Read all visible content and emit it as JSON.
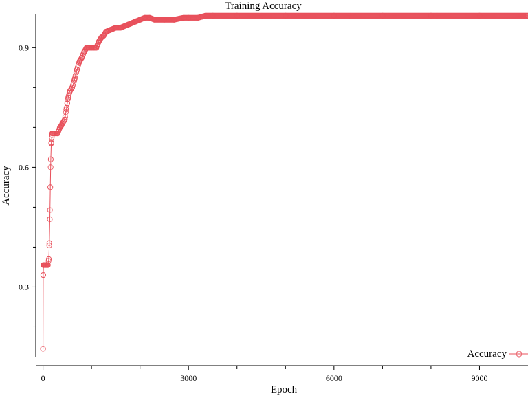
{
  "chart_data": {
    "type": "line",
    "title": "Training Accuracy",
    "xlabel": "Epoch",
    "ylabel": "Accuracy",
    "xlim": [
      -150,
      10000
    ],
    "ylim": [
      0.125,
      0.985
    ],
    "x_ticks": [
      0,
      3000,
      6000,
      9000
    ],
    "x_tick_labels": [
      "0",
      "3000",
      "6000",
      "9000"
    ],
    "x_minor_ticks": [
      1000,
      2000,
      4000,
      5000,
      7000,
      8000
    ],
    "y_ticks": [
      0.3,
      0.6,
      0.9
    ],
    "y_tick_labels": [
      "0.3",
      "0.6",
      "0.9"
    ],
    "y_minor_ticks": [
      0.2,
      0.4,
      0.5,
      0.7,
      0.8
    ],
    "grid": false,
    "legend_position": "bottom-right",
    "color": "#e8505b",
    "series": [
      {
        "name": "Accuracy",
        "marker": "circle",
        "x": [
          0,
          5,
          10,
          20,
          40,
          60,
          80,
          100,
          120,
          130,
          140,
          150,
          160,
          170,
          180,
          190,
          200,
          230,
          300,
          350,
          380,
          400,
          450,
          480,
          500,
          520,
          550,
          600,
          650,
          700,
          750,
          800,
          850,
          900,
          950,
          1000,
          1050,
          1100,
          1150,
          1200,
          1250,
          1300,
          1400,
          1500,
          1600,
          1700,
          1800,
          1900,
          2000,
          2100,
          2200,
          2300,
          2500,
          2700,
          2900,
          3000,
          3200,
          3350,
          3500,
          4000,
          5000,
          6000,
          7000,
          8000,
          9000,
          10000
        ],
        "y": [
          0.145,
          0.33,
          0.355,
          0.355,
          0.355,
          0.355,
          0.355,
          0.355,
          0.37,
          0.41,
          0.47,
          0.55,
          0.62,
          0.66,
          0.675,
          0.685,
          0.685,
          0.685,
          0.685,
          0.7,
          0.705,
          0.71,
          0.72,
          0.745,
          0.76,
          0.775,
          0.79,
          0.8,
          0.82,
          0.845,
          0.865,
          0.875,
          0.89,
          0.9,
          0.9,
          0.9,
          0.9,
          0.9,
          0.915,
          0.925,
          0.93,
          0.94,
          0.945,
          0.95,
          0.95,
          0.955,
          0.96,
          0.965,
          0.97,
          0.975,
          0.975,
          0.97,
          0.97,
          0.97,
          0.975,
          0.975,
          0.975,
          0.98,
          0.98,
          0.98,
          0.98,
          0.98,
          0.98,
          0.98,
          0.98,
          0.98
        ]
      }
    ]
  }
}
